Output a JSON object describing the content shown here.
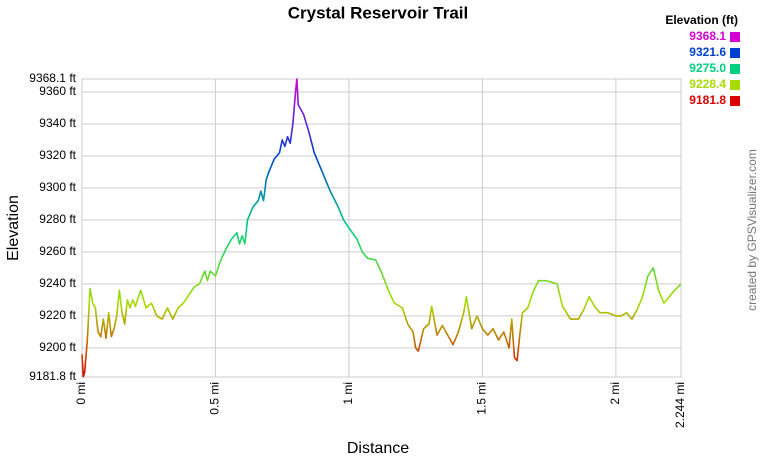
{
  "chart_data": {
    "type": "line",
    "title": "Crystal Reservoir Trail",
    "x_label": "Distance",
    "y_label": "Elevation",
    "credit": "created by GPSVisualizer.com",
    "legend_title": "Elevation (ft)",
    "color_scale": [
      {
        "value": 9368.1,
        "label": "9368.1",
        "color": "#d400d4"
      },
      {
        "value": 9321.6,
        "label": "9321.6",
        "color": "#0040d0"
      },
      {
        "value": 9275.0,
        "label": "9275.0",
        "color": "#00d080"
      },
      {
        "value": 9228.4,
        "label": "9228.4",
        "color": "#a8dc00"
      },
      {
        "value": 9181.8,
        "label": "9181.8",
        "color": "#dc0000"
      }
    ],
    "x": [
      0,
      0.005,
      0.01,
      0.02,
      0.03,
      0.04,
      0.05,
      0.06,
      0.07,
      0.08,
      0.09,
      0.1,
      0.11,
      0.12,
      0.13,
      0.14,
      0.15,
      0.16,
      0.17,
      0.18,
      0.19,
      0.2,
      0.22,
      0.24,
      0.26,
      0.28,
      0.3,
      0.32,
      0.34,
      0.36,
      0.38,
      0.4,
      0.42,
      0.44,
      0.46,
      0.47,
      0.48,
      0.5,
      0.52,
      0.54,
      0.56,
      0.58,
      0.59,
      0.6,
      0.61,
      0.62,
      0.64,
      0.66,
      0.67,
      0.68,
      0.69,
      0.7,
      0.72,
      0.74,
      0.75,
      0.76,
      0.77,
      0.78,
      0.79,
      0.8,
      0.805,
      0.81,
      0.83,
      0.85,
      0.87,
      0.9,
      0.93,
      0.96,
      0.98,
      1.0,
      1.03,
      1.05,
      1.07,
      1.1,
      1.12,
      1.15,
      1.17,
      1.2,
      1.22,
      1.24,
      1.25,
      1.26,
      1.28,
      1.3,
      1.31,
      1.33,
      1.35,
      1.37,
      1.39,
      1.41,
      1.43,
      1.44,
      1.46,
      1.48,
      1.5,
      1.52,
      1.54,
      1.56,
      1.58,
      1.6,
      1.61,
      1.62,
      1.63,
      1.64,
      1.65,
      1.67,
      1.69,
      1.71,
      1.74,
      1.78,
      1.8,
      1.83,
      1.86,
      1.88,
      1.9,
      1.92,
      1.94,
      1.97,
      2.0,
      2.02,
      2.04,
      2.06,
      2.08,
      2.1,
      2.12,
      2.14,
      2.16,
      2.18,
      2.2,
      2.22,
      2.244
    ],
    "values": [
      9196,
      9182,
      9185,
      9205,
      9237,
      9228,
      9225,
      9210,
      9207,
      9218,
      9206,
      9222,
      9207,
      9212,
      9220,
      9236,
      9222,
      9215,
      9230,
      9225,
      9230,
      9226,
      9236,
      9225,
      9228,
      9220,
      9218,
      9225,
      9218,
      9225,
      9228,
      9233,
      9238,
      9240,
      9248,
      9242,
      9248,
      9245,
      9255,
      9262,
      9268,
      9272,
      9265,
      9270,
      9265,
      9280,
      9288,
      9292,
      9298,
      9292,
      9305,
      9310,
      9318,
      9322,
      9330,
      9326,
      9332,
      9328,
      9340,
      9360,
      9368.1,
      9352,
      9346,
      9335,
      9322,
      9310,
      9298,
      9288,
      9280,
      9275,
      9268,
      9260,
      9256,
      9255,
      9248,
      9235,
      9228,
      9225,
      9215,
      9210,
      9200,
      9198,
      9212,
      9215,
      9226,
      9208,
      9214,
      9208,
      9202,
      9210,
      9222,
      9232,
      9212,
      9220,
      9212,
      9208,
      9212,
      9205,
      9210,
      9200,
      9218,
      9194,
      9192,
      9208,
      9222,
      9225,
      9235,
      9242,
      9242,
      9240,
      9226,
      9218,
      9218,
      9224,
      9232,
      9226,
      9222,
      9222,
      9220,
      9220,
      9222,
      9218,
      9224,
      9232,
      9245,
      9250,
      9236,
      9228,
      9232,
      9236,
      9240
    ],
    "xlim": [
      0,
      2.244
    ],
    "ylim": [
      9181.8,
      9368.1
    ],
    "xticks": [
      {
        "value": 0,
        "label": "0 mi"
      },
      {
        "value": 0.5,
        "label": "0.5 mi"
      },
      {
        "value": 1,
        "label": "1 mi"
      },
      {
        "value": 1.5,
        "label": "1.5 mi"
      },
      {
        "value": 2,
        "label": "2 mi"
      },
      {
        "value": 2.244,
        "label": "2.244 mi"
      }
    ],
    "yticks": [
      {
        "value": 9181.8,
        "label": "9181.8 ft"
      },
      {
        "value": 9200,
        "label": "9200 ft"
      },
      {
        "value": 9220,
        "label": "9220 ft"
      },
      {
        "value": 9240,
        "label": "9240 ft"
      },
      {
        "value": 9260,
        "label": "9260 ft"
      },
      {
        "value": 9280,
        "label": "9280 ft"
      },
      {
        "value": 9300,
        "label": "9300 ft"
      },
      {
        "value": 9320,
        "label": "9320 ft"
      },
      {
        "value": 9340,
        "label": "9340 ft"
      },
      {
        "value": 9360,
        "label": "9360 ft"
      },
      {
        "value": 9368.1,
        "label": "9368.1 ft"
      }
    ],
    "grid": true
  }
}
